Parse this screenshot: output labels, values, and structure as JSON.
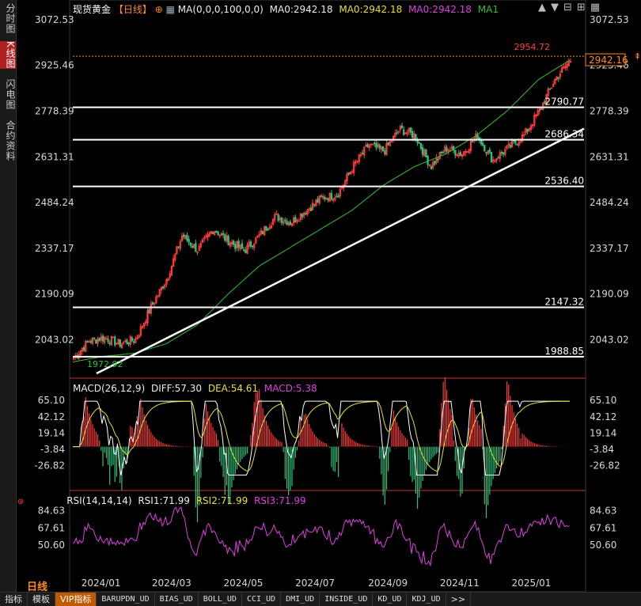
{
  "sidebar": {
    "tabs": [
      {
        "label": "分时图",
        "active": false
      },
      {
        "label": "K线图",
        "active": true
      },
      {
        "label": "闪电图",
        "active": false
      },
      {
        "label": "合约资料",
        "active": false
      }
    ]
  },
  "header": {
    "symbol": "现货黄金",
    "period_tag": "【日线】",
    "ma_formula": "MA(0,0,0,100,0,0)",
    "ma_a": "MA0:2942.18",
    "ma_b": "MA0:2942.18",
    "ma_c": "MA0:2942.18",
    "ma1": "MA1"
  },
  "toolbar": {
    "icons": [
      "arrow-up-icon",
      "arrow-down-icon",
      "zoom-out-icon",
      "zoom-in-icon",
      "grid-icon"
    ]
  },
  "colors": {
    "up": "#ff3b3b",
    "down": "#2ec27e",
    "ma": "#31c131",
    "lines": "#ffffff",
    "macd_diff": "#ffffff",
    "macd_dea": "#e8e030",
    "macd_macd": "#e040e0",
    "rsi": "#e040e0",
    "axis": "#d8d8d8",
    "accent": "#ff8a1e"
  },
  "chart_data": [
    {
      "type": "candlestick",
      "title": "现货黄金 日线",
      "yticks": [
        3072.53,
        2925.46,
        2778.39,
        2631.31,
        2484.24,
        2337.17,
        2190.09,
        2043.02
      ],
      "ylim": [
        1935,
        3100
      ],
      "xticks": [
        "2024/01",
        "2024/03",
        "2024/05",
        "2024/07",
        "2024/09",
        "2024/11",
        "2025/01"
      ],
      "level_lines": [
        2790.77,
        2686.34,
        2536.4,
        2147.32,
        1988.85
      ],
      "marks": {
        "high_label": "2954.72",
        "low_label": "1972.92",
        "last_price": "2942.16",
        "last_price_value": 2942.16,
        "high_value": 2954.72,
        "low_value": 1972.92
      },
      "trendline": {
        "from": {
          "date": "2023/12/15",
          "value": 1935
        },
        "to": {
          "date": "2025/02/11",
          "value": 2722
        }
      },
      "ma_anchors": [
        1972,
        1990,
        2000,
        2030,
        2090,
        2190,
        2280,
        2340,
        2400,
        2460,
        2540,
        2600,
        2640,
        2700,
        2780,
        2880,
        2942
      ],
      "close_anchors": [
        1985,
        2040,
        2050,
        2030,
        2045,
        2150,
        2240,
        2380,
        2330,
        2400,
        2360,
        2330,
        2380,
        2440,
        2420,
        2460,
        2500,
        2510,
        2600,
        2670,
        2650,
        2720,
        2700,
        2600,
        2660,
        2640,
        2700,
        2620,
        2660,
        2700,
        2780,
        2880,
        2942
      ]
    },
    {
      "type": "macd",
      "title": "MACD(26,12,9)",
      "diff_label": "DIFF:57.30",
      "dea_label": "DEA:54.61",
      "macd_label": "MACD:5.38",
      "yticks": [
        65.1,
        42.12,
        19.14,
        -3.84,
        -26.82
      ],
      "ylim": [
        -45,
        72
      ]
    },
    {
      "type": "line",
      "title": "RSI(14,14,14)",
      "rsi1_label": "RSI1:71.99",
      "rsi2_label": "RSI2:71.99",
      "rsi3_label": "RSI3:71.99",
      "yticks": [
        84.63,
        67.61,
        50.6
      ],
      "ylim": [
        25,
        92
      ]
    }
  ],
  "bottom": {
    "period_label": "日线",
    "tabs": [
      {
        "label": "指标",
        "active": false,
        "mono": false
      },
      {
        "label": "模板",
        "active": false,
        "mono": false
      },
      {
        "label": "VIP指标",
        "active": true,
        "mono": false
      },
      {
        "label": "BARUPDN_UD",
        "active": false,
        "mono": true
      },
      {
        "label": "BIAS_UD",
        "active": false,
        "mono": true
      },
      {
        "label": "BOLL_UD",
        "active": false,
        "mono": true
      },
      {
        "label": "CCI_UD",
        "active": false,
        "mono": true
      },
      {
        "label": "DMI_UD",
        "active": false,
        "mono": true
      },
      {
        "label": "INSIDE_UD",
        "active": false,
        "mono": true
      },
      {
        "label": "KD_UD",
        "active": false,
        "mono": true
      },
      {
        "label": "KDJ_UD",
        "active": false,
        "mono": true
      },
      {
        "label": ">>",
        "active": false,
        "mono": false
      }
    ]
  }
}
